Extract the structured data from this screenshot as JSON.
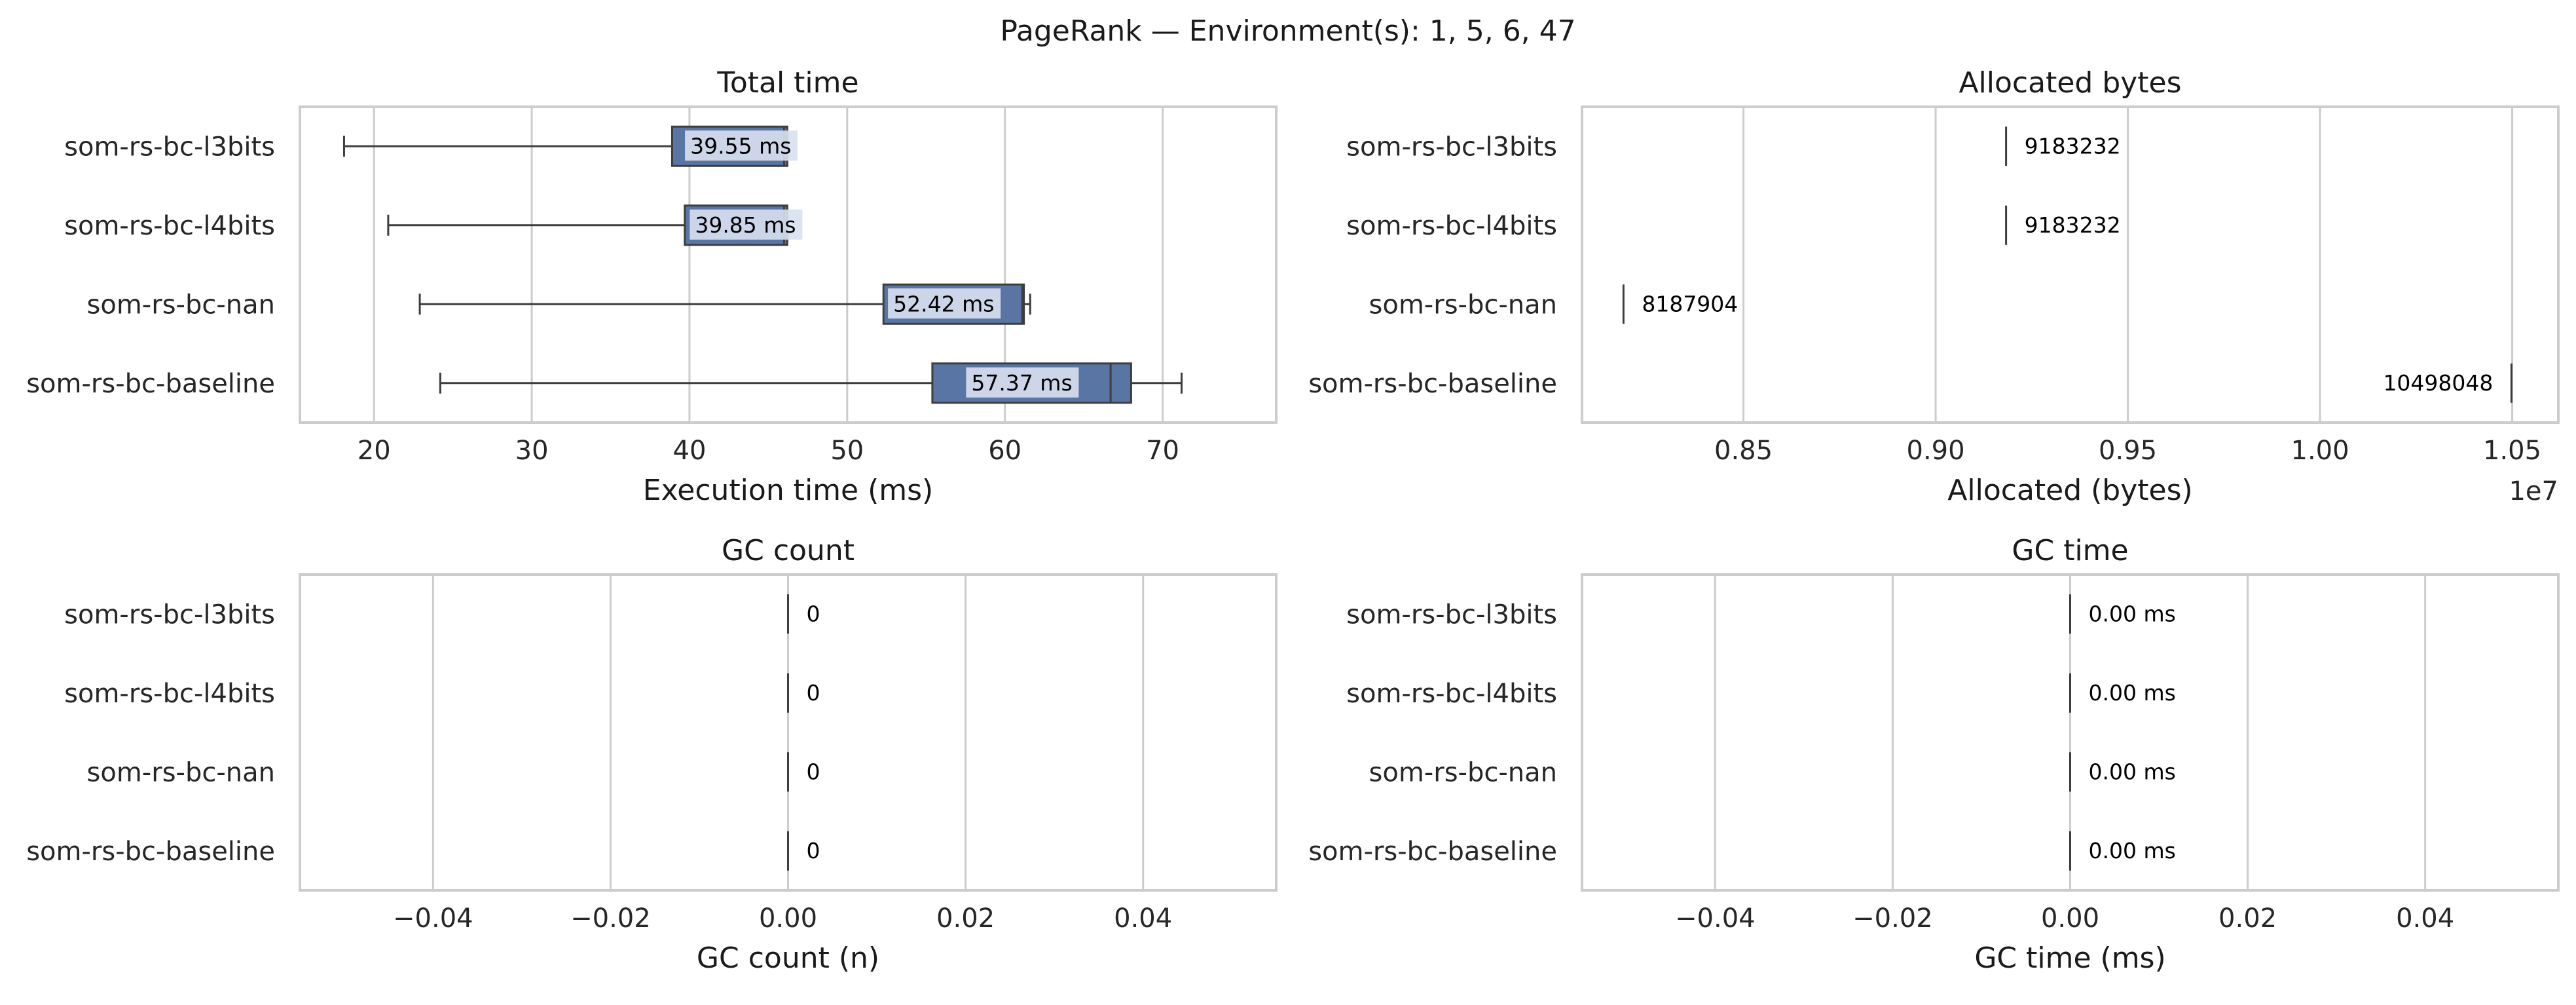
{
  "figure": {
    "title": "PageRank — Environment(s): 1, 5, 6, 47",
    "colors": {
      "box": "#5975a4",
      "box_edge": "#3d3d3d",
      "grid": "#cccccc",
      "frame": "#cccccc",
      "label_bg": "#d9e1ef"
    }
  },
  "chart_data": [
    {
      "type": "box",
      "title": "Total time",
      "xlabel": "Execution time (ms)",
      "categories": [
        "som-rs-bc-l3bits",
        "som-rs-bc-l4bits",
        "som-rs-bc-nan",
        "som-rs-bc-baseline"
      ],
      "xlim": [
        15.3,
        77.2
      ],
      "xticks": [
        20,
        30,
        40,
        50,
        60,
        70
      ],
      "xtick_labels": [
        "20",
        "30",
        "40",
        "50",
        "60",
        "70"
      ],
      "boxes": [
        {
          "whisker_low": 18.1,
          "q1": 38.9,
          "median": 46.0,
          "q3": 46.2,
          "whisker_high": 46.2
        },
        {
          "whisker_low": 20.9,
          "q1": 39.7,
          "median": 46.0,
          "q3": 46.2,
          "whisker_high": 46.2
        },
        {
          "whisker_low": 22.9,
          "q1": 52.3,
          "median": 61.1,
          "q3": 61.2,
          "whisker_high": 61.6
        },
        {
          "whisker_low": 24.2,
          "q1": 55.4,
          "median": 66.7,
          "q3": 68.0,
          "whisker_high": 71.2
        }
      ],
      "annotations": [
        "39.55 ms",
        "39.85 ms",
        "52.42 ms",
        "57.37 ms"
      ],
      "annotation_x": [
        39.55,
        39.85,
        52.42,
        57.37
      ]
    },
    {
      "type": "box",
      "title": "Allocated bytes",
      "xlabel": "Allocated (bytes)",
      "offset_label": "1e7",
      "categories": [
        "som-rs-bc-l3bits",
        "som-rs-bc-l4bits",
        "som-rs-bc-nan",
        "som-rs-bc-baseline"
      ],
      "xlim": [
        8080000,
        10620000
      ],
      "xticks": [
        8500000,
        9000000,
        9500000,
        10000000,
        10500000
      ],
      "xtick_labels": [
        "0.85",
        "0.90",
        "0.95",
        "1.00",
        "1.05"
      ],
      "values": [
        9183232,
        9183232,
        8187904,
        10498048
      ],
      "annotations": [
        "9183232",
        "9183232",
        "8187904",
        "10498048"
      ],
      "annotation_side": [
        "right",
        "right",
        "right",
        "left"
      ]
    },
    {
      "type": "box",
      "title": "GC count",
      "xlabel": "GC count (n)",
      "categories": [
        "som-rs-bc-l3bits",
        "som-rs-bc-l4bits",
        "som-rs-bc-nan",
        "som-rs-bc-baseline"
      ],
      "xlim": [
        -0.055,
        0.055
      ],
      "xticks": [
        -0.04,
        -0.02,
        0.0,
        0.02,
        0.04
      ],
      "xtick_labels": [
        "−0.04",
        "−0.02",
        "0.00",
        "0.02",
        "0.04"
      ],
      "values": [
        0,
        0,
        0,
        0
      ],
      "annotations": [
        "0",
        "0",
        "0",
        "0"
      ],
      "annotation_side": [
        "right",
        "right",
        "right",
        "right"
      ]
    },
    {
      "type": "box",
      "title": "GC time",
      "xlabel": "GC time (ms)",
      "categories": [
        "som-rs-bc-l3bits",
        "som-rs-bc-l4bits",
        "som-rs-bc-nan",
        "som-rs-bc-baseline"
      ],
      "xlim": [
        -0.055,
        0.055
      ],
      "xticks": [
        -0.04,
        -0.02,
        0.0,
        0.02,
        0.04
      ],
      "xtick_labels": [
        "−0.04",
        "−0.02",
        "0.00",
        "0.02",
        "0.04"
      ],
      "values": [
        0,
        0,
        0,
        0
      ],
      "annotations": [
        "0.00 ms",
        "0.00 ms",
        "0.00 ms",
        "0.00 ms"
      ],
      "annotation_side": [
        "right",
        "right",
        "right",
        "right"
      ]
    }
  ]
}
